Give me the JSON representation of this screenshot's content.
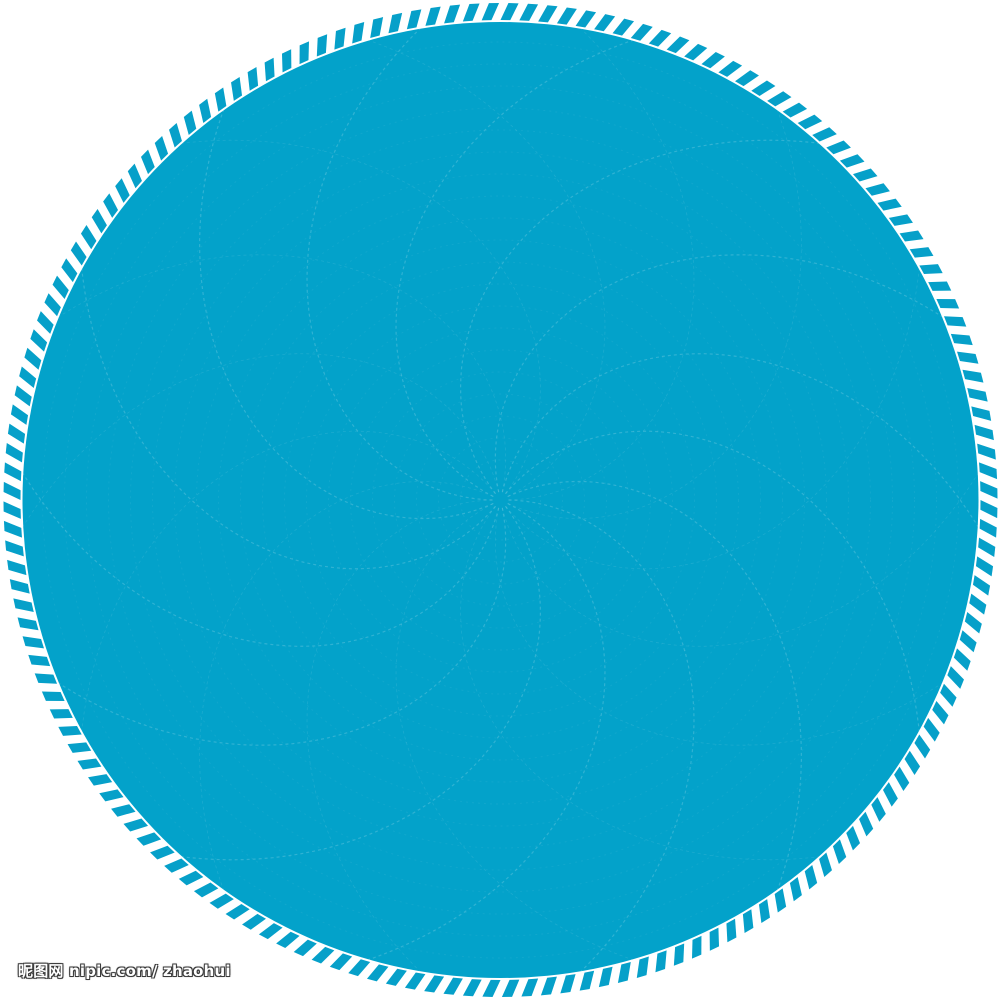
{
  "image": {
    "subject": "blue circular disc with a striped rim and a fine swirl pattern",
    "colors": {
      "disc": "#03a2ca",
      "stripe": "#06a0c9",
      "swirl": "#ffffff",
      "background": "#ffffff"
    },
    "rim_stripe_count": 160,
    "swirl_arm_count": 14
  },
  "watermark": {
    "text": "昵图网 nipic.com/ zhaohui"
  }
}
